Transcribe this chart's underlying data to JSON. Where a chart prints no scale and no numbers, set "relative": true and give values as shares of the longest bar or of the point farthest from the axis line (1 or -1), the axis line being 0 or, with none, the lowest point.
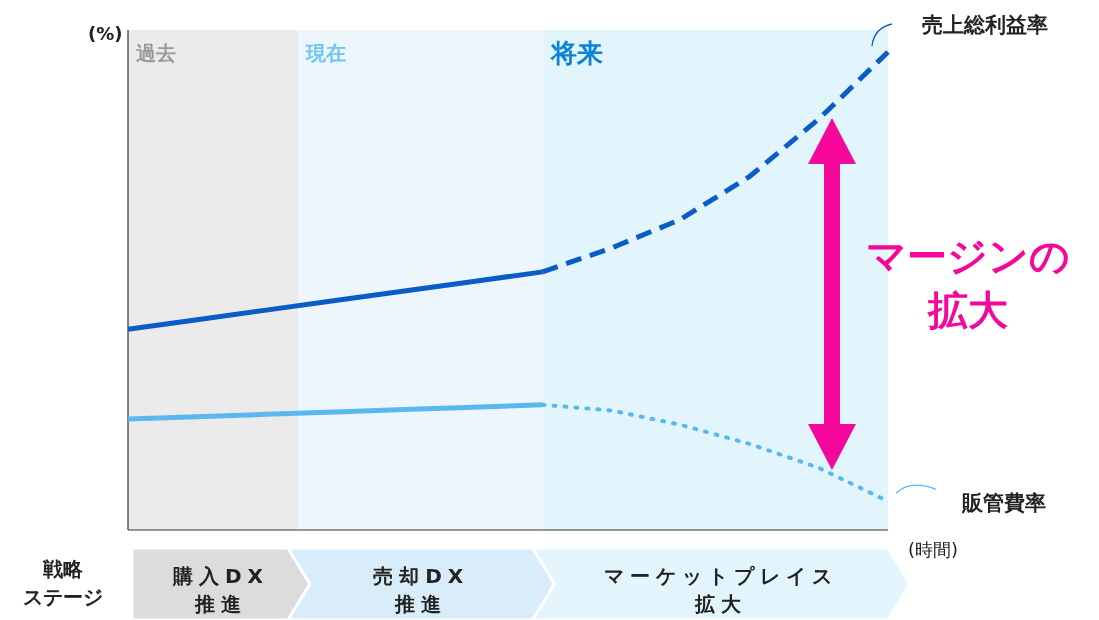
{
  "chart_data": {
    "type": "line",
    "relative": true,
    "legend": "right",
    "xlabel": "(時間)",
    "ylabel": "(%)",
    "categories": [
      null,
      null,
      null,
      null,
      null,
      null,
      null,
      null,
      null,
      null,
      null,
      null
    ],
    "series": [
      {
        "color": "#0a5cc7",
        "line_style": "solid",
        "values": [
          0.42,
          0.44,
          0.46,
          0.48,
          0.5,
          0.52,
          0.54,
          null,
          null,
          null,
          null,
          null
        ]
      },
      {
        "name": "売上総利益率",
        "color": "#0a5cc7",
        "line_style": "dashed",
        "values": [
          null,
          null,
          null,
          null,
          null,
          null,
          0.54,
          0.59,
          0.65,
          0.74,
          0.86,
          1
        ]
      },
      {
        "color": "#5bb8ee",
        "line_style": "solid",
        "values": [
          0.232,
          0.237,
          0.242,
          0.247,
          0.252,
          0.257,
          0.262,
          null,
          null,
          null,
          null,
          null
        ]
      },
      {
        "name": "販管費率",
        "color": "#5bb8ee",
        "line_style": "dotted",
        "values": [
          null,
          null,
          null,
          null,
          null,
          null,
          0.262,
          0.25,
          0.22,
          0.18,
          0.13,
          0.06
        ]
      }
    ],
    "annotations": [
      "マージンの拡大",
      "戦略ステージ",
      "過去",
      "現在",
      "将来",
      "購入DX推進",
      "売却DX推進",
      "マーケットプレイス拡大"
    ]
  }
}
